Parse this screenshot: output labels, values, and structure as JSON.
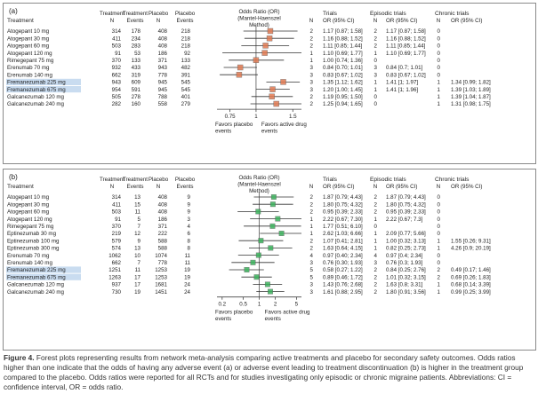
{
  "headers": {
    "treatment": "Treatment",
    "treat_n": [
      "Treatment",
      "N"
    ],
    "treat_events": [
      "Treatment",
      "Events"
    ],
    "placebo_n": [
      "Placebo",
      "N"
    ],
    "placebo_events": [
      "Placebo",
      "Events"
    ],
    "or_title": [
      "Odds Ratio (OR)",
      "(Mantel-Haenszel",
      "Method)"
    ],
    "n": "N",
    "trials": [
      "Trials",
      "OR (95% CI)"
    ],
    "episodic": [
      "Episodic trials",
      "N",
      "OR (95% CI)"
    ],
    "chronic": [
      "Chronic trials",
      "N",
      "OR (95% CI)"
    ]
  },
  "panels": [
    {
      "label": "(a)",
      "axis": {
        "log": true,
        "ticks": [
          0.75,
          1,
          1.5
        ],
        "tick_labels": [
          "0.75",
          "1",
          "1.5"
        ],
        "range": [
          0.65,
          1.65
        ]
      },
      "favors_left": [
        "Favors placebo",
        "events"
      ],
      "favors_right": [
        "Favors active drug",
        "events"
      ],
      "rows": [
        {
          "treatment": "Atogepant 10 mg",
          "tn": "314",
          "te": "178",
          "pn": "408",
          "pe": "218",
          "n": "2",
          "or": "1.17 [0.87; 1.58]",
          "en": "2",
          "eor": "1.17 [0.87; 1.58]",
          "cn": "0",
          "cor": "",
          "est": 1.17,
          "lo": 0.87,
          "hi": 1.58,
          "highlight": false
        },
        {
          "treatment": "Atogepant 30 mg",
          "tn": "411",
          "te": "234",
          "pn": "408",
          "pe": "218",
          "n": "2",
          "or": "1.16 [0.88; 1.52]",
          "en": "2",
          "eor": "1.16 [0.88; 1.52]",
          "cn": "0",
          "cor": "",
          "est": 1.16,
          "lo": 0.88,
          "hi": 1.52,
          "highlight": false
        },
        {
          "treatment": "Atogepant 60 mg",
          "tn": "503",
          "te": "283",
          "pn": "408",
          "pe": "218",
          "n": "2",
          "or": "1.11 [0.85; 1.44]",
          "en": "2",
          "eor": "1.11 [0.85; 1.44]",
          "cn": "0",
          "cor": "",
          "est": 1.11,
          "lo": 0.85,
          "hi": 1.44,
          "highlight": false
        },
        {
          "treatment": "Atogepant 120 mg",
          "tn": "91",
          "te": "53",
          "pn": "186",
          "pe": "92",
          "n": "1",
          "or": "1.10 [0.69; 1.77]",
          "en": "1",
          "eor": "1.10 [0.69; 1.77]",
          "cn": "0",
          "cor": "",
          "est": 1.1,
          "lo": 0.69,
          "hi": 1.77,
          "highlight": false
        },
        {
          "treatment": "Rimegepant 75 mg",
          "tn": "370",
          "te": "133",
          "pn": "371",
          "pe": "133",
          "n": "1",
          "or": "1.00 [0.74; 1.36]",
          "en": "0",
          "eor": "",
          "cn": "0",
          "cor": "",
          "est": 1.0,
          "lo": 0.74,
          "hi": 1.36,
          "highlight": false
        },
        {
          "treatment": "Erenumab 70 mg",
          "tn": "932",
          "te": "433",
          "pn": "943",
          "pe": "482",
          "n": "3",
          "or": "0.84 [0.70; 1.01]",
          "en": "3",
          "eor": "0.84 [0.7; 1.01]",
          "cn": "0",
          "cor": "",
          "est": 0.84,
          "lo": 0.7,
          "hi": 1.01,
          "highlight": false
        },
        {
          "treatment": "Erenumab 140 mg",
          "tn": "662",
          "te": "319",
          "pn": "778",
          "pe": "391",
          "n": "3",
          "or": "0.83 [0.67; 1.02]",
          "en": "3",
          "eor": "0.83 [0.67; 1.02]",
          "cn": "0",
          "cor": "",
          "est": 0.83,
          "lo": 0.67,
          "hi": 1.02,
          "highlight": false
        },
        {
          "treatment": "Fremanezumab 225 mg",
          "tn": "943",
          "te": "609",
          "pn": "945",
          "pe": "545",
          "n": "3",
          "or": "1.35 [1.12; 1.62]",
          "en": "1",
          "eor": "1.41 [1; 1.97]",
          "cn": "1",
          "cor": "1.34 [0.99; 1.82]",
          "est": 1.35,
          "lo": 1.12,
          "hi": 1.62,
          "highlight": true
        },
        {
          "treatment": "Fremanezumab 675 mg",
          "tn": "954",
          "te": "591",
          "pn": "945",
          "pe": "545",
          "n": "3",
          "or": "1.20 [1.00; 1.45]",
          "en": "1",
          "eor": "1.41 [1; 1.96]",
          "cn": "1",
          "cor": "1.39 [1.03; 1.89]",
          "est": 1.2,
          "lo": 1.0,
          "hi": 1.45,
          "highlight": true
        },
        {
          "treatment": "Galcanezumab 120 mg",
          "tn": "505",
          "te": "278",
          "pn": "788",
          "pe": "401",
          "n": "2",
          "or": "1.19 [0.95; 1.50]",
          "en": "0",
          "eor": "",
          "cn": "1",
          "cor": "1.39 [1.04; 1.87]",
          "est": 1.19,
          "lo": 0.95,
          "hi": 1.5,
          "highlight": false
        },
        {
          "treatment": "Galcanezumab 240 mg",
          "tn": "282",
          "te": "160",
          "pn": "558",
          "pe": "279",
          "n": "2",
          "or": "1.25 [0.94; 1.65]",
          "en": "0",
          "eor": "",
          "cn": "1",
          "cor": "1.31 [0.98; 1.75]",
          "est": 1.25,
          "lo": 0.94,
          "hi": 1.65,
          "highlight": false
        }
      ]
    },
    {
      "label": "(b)",
      "axis": {
        "log": true,
        "ticks": [
          0.2,
          0.5,
          1,
          2,
          5
        ],
        "tick_labels": [
          "0.2",
          "0.5",
          "1",
          "2",
          "5"
        ],
        "range": [
          0.16,
          6.2
        ]
      },
      "favors_left": [
        "Favors placebo",
        "events"
      ],
      "favors_right": [
        "Favors active drug",
        "events"
      ],
      "rows": [
        {
          "treatment": "Atogepant 10 mg",
          "tn": "314",
          "te": "13",
          "pn": "408",
          "pe": "9",
          "n": "2",
          "or": "1.87 [0.79; 4.43]",
          "en": "2",
          "eor": "1.87 [0.79; 4.43]",
          "cn": "0",
          "cor": "",
          "est": 1.87,
          "lo": 0.79,
          "hi": 4.43,
          "highlight": false
        },
        {
          "treatment": "Atogepant 30 mg",
          "tn": "411",
          "te": "15",
          "pn": "408",
          "pe": "9",
          "n": "2",
          "or": "1.80 [0.75; 4.32]",
          "en": "2",
          "eor": "1.80 [0.75; 4.32]",
          "cn": "0",
          "cor": "",
          "est": 1.8,
          "lo": 0.75,
          "hi": 4.32,
          "highlight": false
        },
        {
          "treatment": "Atogepant 60 mg",
          "tn": "503",
          "te": "11",
          "pn": "408",
          "pe": "9",
          "n": "2",
          "or": "0.95 [0.39; 2.33]",
          "en": "2",
          "eor": "0.95 [0.39; 2.33]",
          "cn": "0",
          "cor": "",
          "est": 0.95,
          "lo": 0.39,
          "hi": 2.33,
          "highlight": false
        },
        {
          "treatment": "Atogepant 120 mg",
          "tn": "91",
          "te": "5",
          "pn": "186",
          "pe": "3",
          "n": "1",
          "or": "2.22 [0.67; 7.30]",
          "en": "1",
          "eor": "2.22 [0.67; 7.3]",
          "cn": "0",
          "cor": "",
          "est": 2.22,
          "lo": 0.67,
          "hi": 7.3,
          "highlight": false
        },
        {
          "treatment": "Rimegepant 75 mg",
          "tn": "370",
          "te": "7",
          "pn": "371",
          "pe": "4",
          "n": "1",
          "or": "1.77 [0.51; 6.10]",
          "en": "0",
          "eor": "",
          "cn": "0",
          "cor": "",
          "est": 1.77,
          "lo": 0.51,
          "hi": 6.1,
          "highlight": false
        },
        {
          "treatment": "Eptinezumab 30 mg",
          "tn": "219",
          "te": "12",
          "pn": "222",
          "pe": "6",
          "n": "1",
          "or": "2.62 [1.03; 6.66]",
          "en": "1",
          "eor": "2.09 [0.77; 5.66]",
          "cn": "0",
          "cor": "",
          "est": 2.62,
          "lo": 1.03,
          "hi": 6.66,
          "highlight": false
        },
        {
          "treatment": "Eptinezumab 100 mg",
          "tn": "579",
          "te": "9",
          "pn": "588",
          "pe": "8",
          "n": "2",
          "or": "1.07 [0.41; 2.81]",
          "en": "1",
          "eor": "1.00 [0.32; 3.13]",
          "cn": "1",
          "cor": "1.55 [0.26; 9.31]",
          "est": 1.07,
          "lo": 0.41,
          "hi": 2.81,
          "highlight": false
        },
        {
          "treatment": "Eptinezumab 300 mg",
          "tn": "574",
          "te": "13",
          "pn": "588",
          "pe": "8",
          "n": "2",
          "or": "1.63 [0.64; 4.15]",
          "en": "1",
          "eor": "0.82 [0.25; 2.73]",
          "cn": "1",
          "cor": "4.26 [0.9; 20.19]",
          "est": 1.63,
          "lo": 0.64,
          "hi": 4.15,
          "highlight": false
        },
        {
          "treatment": "Erenumab 70 mg",
          "tn": "1062",
          "te": "10",
          "pn": "1074",
          "pe": "11",
          "n": "4",
          "or": "0.97 [0.40; 2.34]",
          "en": "4",
          "eor": "0.97 [0.4; 2.34]",
          "cn": "0",
          "cor": "",
          "est": 0.97,
          "lo": 0.4,
          "hi": 2.34,
          "highlight": false
        },
        {
          "treatment": "Erenumab 140 mg",
          "tn": "662",
          "te": "7",
          "pn": "778",
          "pe": "11",
          "n": "3",
          "or": "0.76 [0.30; 1.93]",
          "en": "3",
          "eor": "0.76 [0.3; 1.93]",
          "cn": "0",
          "cor": "",
          "est": 0.76,
          "lo": 0.3,
          "hi": 1.93,
          "highlight": false
        },
        {
          "treatment": "Fremanezumab 225 mg",
          "tn": "1251",
          "te": "11",
          "pn": "1253",
          "pe": "19",
          "n": "5",
          "or": "0.58 [0.27; 1.22]",
          "en": "2",
          "eor": "0.84 [0.25; 2.76]",
          "cn": "2",
          "cor": "0.49 [0.17; 1.46]",
          "est": 0.58,
          "lo": 0.27,
          "hi": 1.22,
          "highlight": true
        },
        {
          "treatment": "Fremanezumab 675 mg",
          "tn": "1263",
          "te": "17",
          "pn": "1253",
          "pe": "19",
          "n": "5",
          "or": "0.89 [0.46; 1.72]",
          "en": "2",
          "eor": "1.01 [0.32; 3.15]",
          "cn": "2",
          "cor": "0.69 [0.26; 1.83]",
          "est": 0.89,
          "lo": 0.46,
          "hi": 1.72,
          "highlight": true
        },
        {
          "treatment": "Galcanezumab 120 mg",
          "tn": "937",
          "te": "17",
          "pn": "1681",
          "pe": "24",
          "n": "3",
          "or": "1.43 [0.76; 2.68]",
          "en": "2",
          "eor": "1.63 [0.8; 3.31]",
          "cn": "1",
          "cor": "0.68 [0.14; 3.39]",
          "est": 1.43,
          "lo": 0.76,
          "hi": 2.68,
          "highlight": false
        },
        {
          "treatment": "Galcanezumab 240 mg",
          "tn": "730",
          "te": "19",
          "pn": "1451",
          "pe": "24",
          "n": "3",
          "or": "1.61 [0.88; 2.95]",
          "en": "2",
          "eor": "1.80 [0.91; 3.56]",
          "cn": "1",
          "cor": "0.99 [0.25; 3.99]",
          "est": 1.61,
          "lo": 0.88,
          "hi": 2.95,
          "highlight": false
        }
      ]
    }
  ],
  "caption": {
    "label": "Figure 4.",
    "text": " Forest plots representing results from network meta-analysis comparing active treatments and placebo for secondary safety outcomes. Odds ratios higher than one indicate that the odds of having any adverse event (a) or adverse event leading to treatment discontinuation (b) is higher in the treatment group compared to the placebo. Odds ratios were reported for all RCTs and for studies investigating only episodic or chronic migraine patients. Abbreviations: CI = confidence interval, OR = odds ratio."
  },
  "colors": {
    "marker_a": "#e07a52",
    "marker_b": "#3bb25c",
    "highlight": "#c9dcf0",
    "line": "#333333"
  }
}
